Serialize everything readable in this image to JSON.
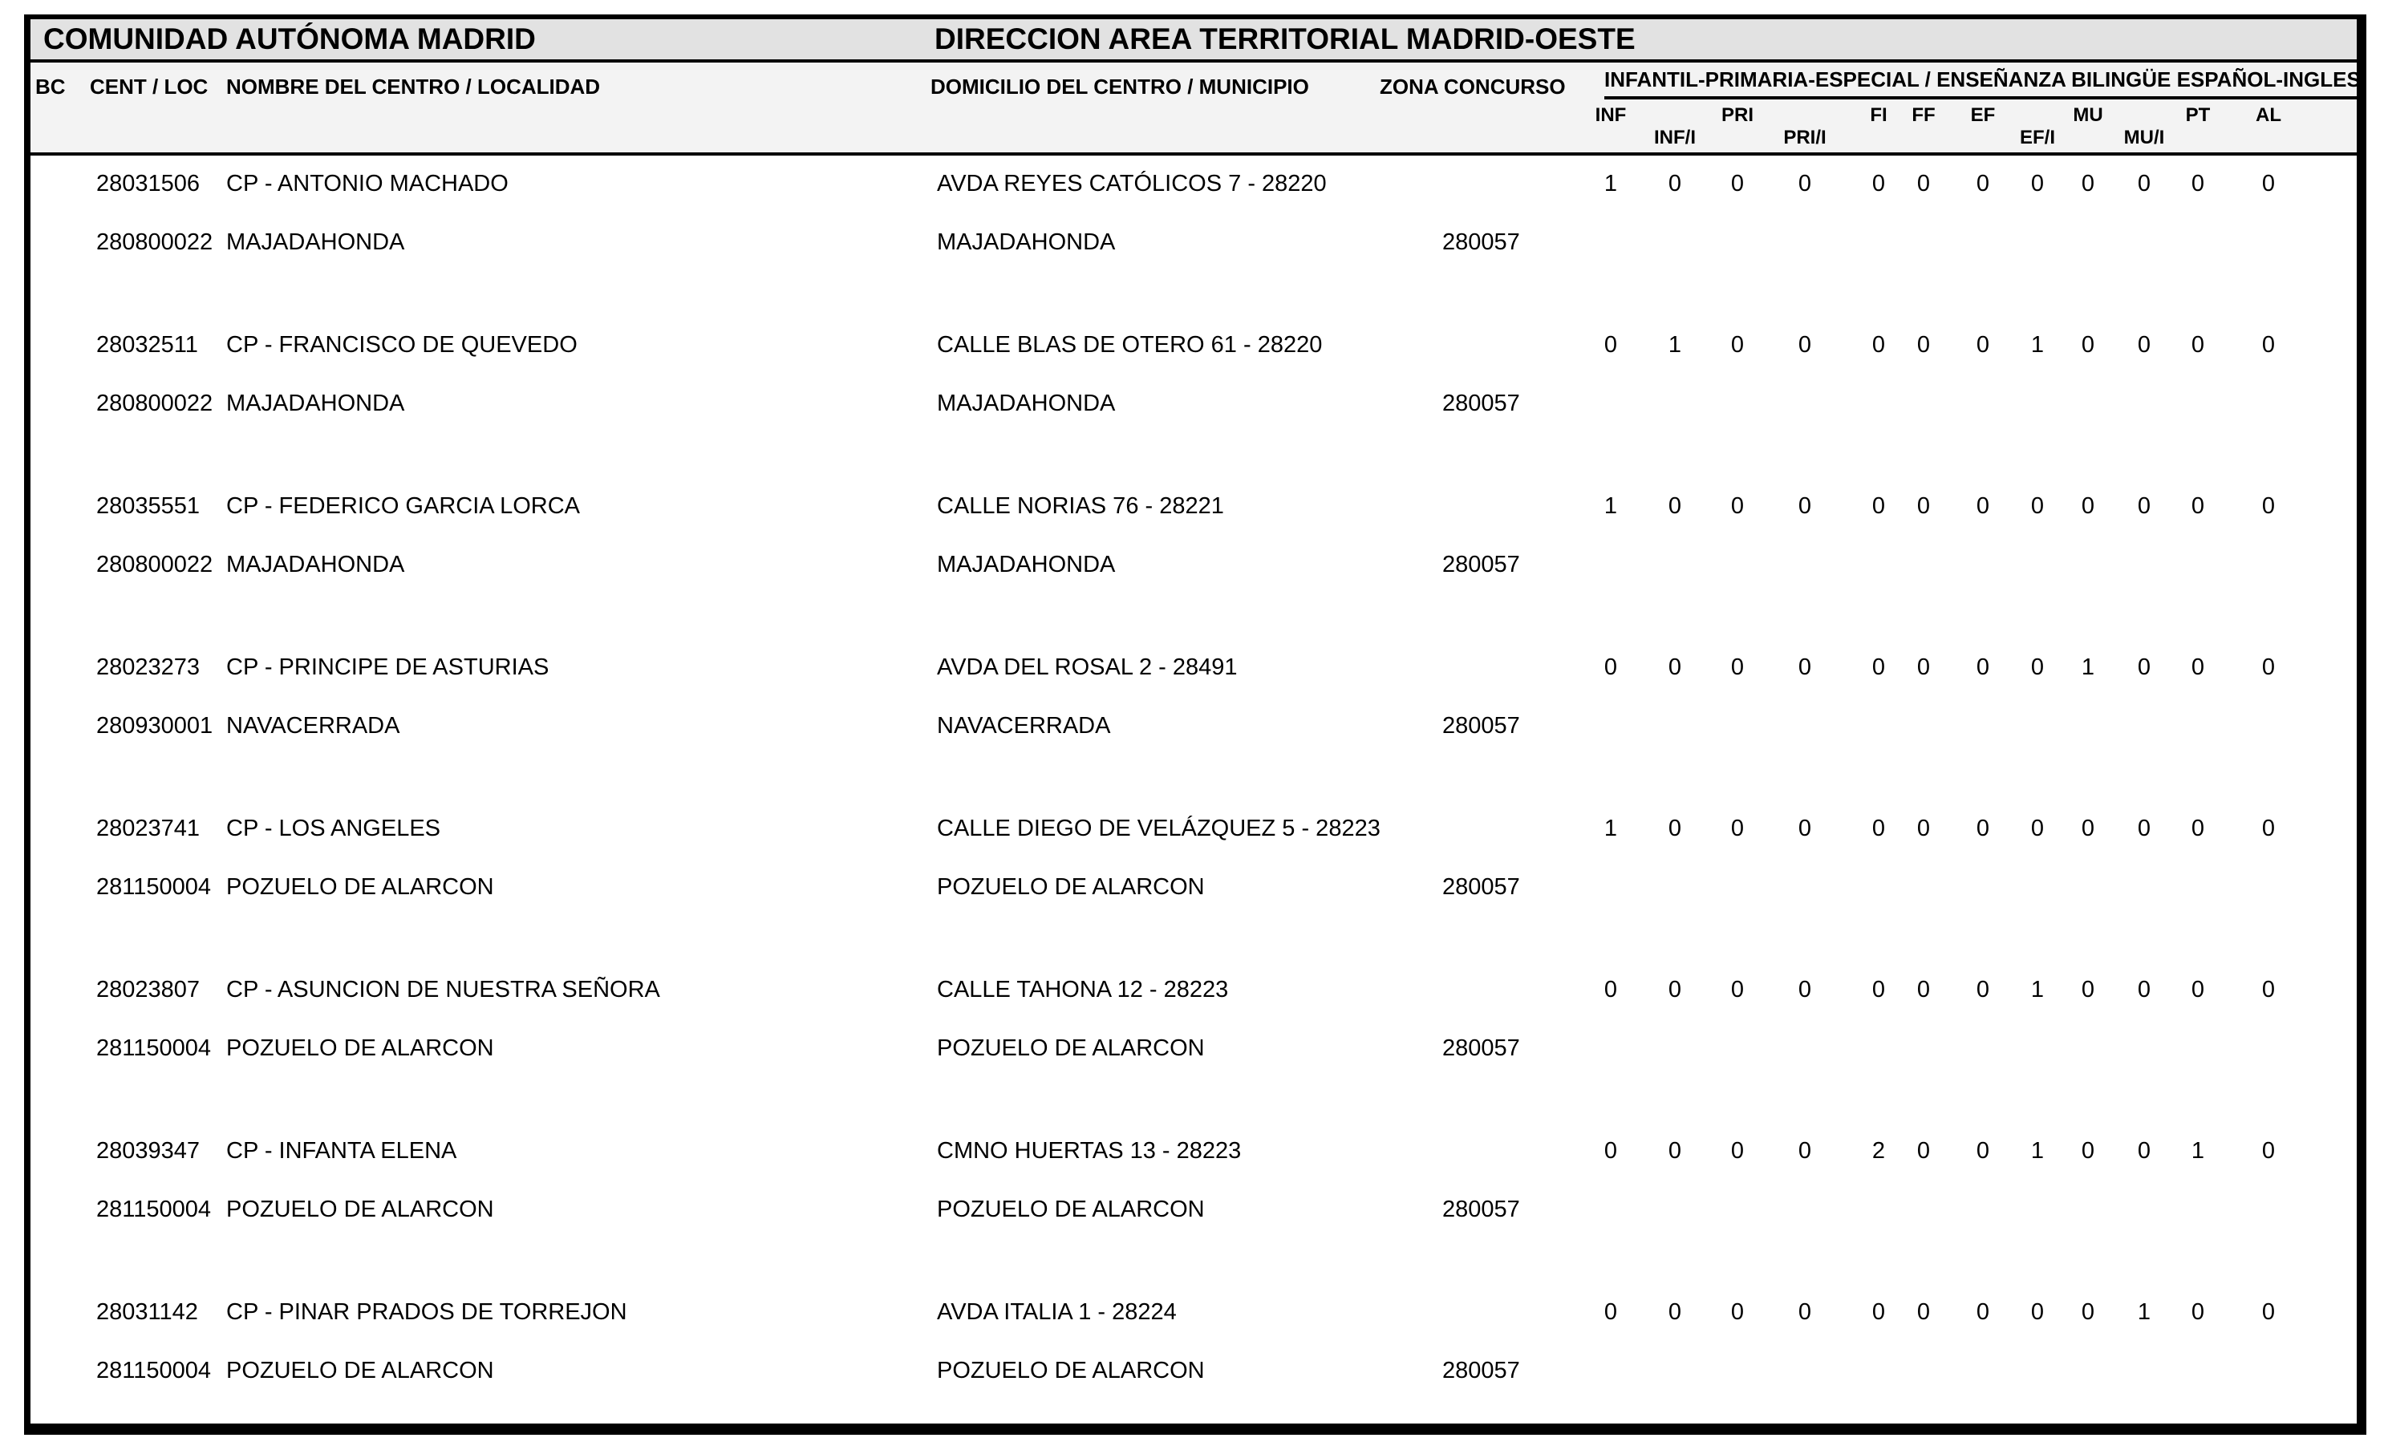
{
  "header": {
    "region_title": "COMUNIDAD AUTÓNOMA MADRID",
    "area_title": "DIRECCION AREA TERRITORIAL MADRID-OESTE"
  },
  "columns": {
    "bc": "BC",
    "cent_loc": "CENT / LOC",
    "nombre": "NOMBRE DEL CENTRO / LOCALIDAD",
    "domicilio": "DOMICILIO DEL CENTRO / MUNICIPIO",
    "zona": "ZONA CONCURSO",
    "group": "INFANTIL-PRIMARIA-ESPECIAL / ENSEÑANZA BILINGÜE ESPAÑOL-INGLES",
    "subcolumns": [
      "INF",
      "INF/I",
      "PRI",
      "PRI/I",
      "FI",
      "FF",
      "EF",
      "EF/I",
      "MU",
      "MU/I",
      "PT",
      "AL"
    ]
  },
  "rows": [
    {
      "cent": "28031506",
      "nombre": "CP - ANTONIO MACHADO",
      "domicilio": "AVDA REYES CATÓLICOS 7 - 28220",
      "loc": "280800022",
      "localidad": "MAJADAHONDA",
      "municipio": "MAJADAHONDA",
      "zona": "280057",
      "values": [
        1,
        0,
        0,
        0,
        0,
        0,
        0,
        0,
        0,
        0,
        0,
        0
      ]
    },
    {
      "cent": "28032511",
      "nombre": "CP - FRANCISCO DE QUEVEDO",
      "domicilio": "CALLE BLAS DE OTERO 61 - 28220",
      "loc": "280800022",
      "localidad": "MAJADAHONDA",
      "municipio": "MAJADAHONDA",
      "zona": "280057",
      "values": [
        0,
        1,
        0,
        0,
        0,
        0,
        0,
        1,
        0,
        0,
        0,
        0
      ]
    },
    {
      "cent": "28035551",
      "nombre": "CP - FEDERICO GARCIA LORCA",
      "domicilio": "CALLE NORIAS 76 - 28221",
      "loc": "280800022",
      "localidad": "MAJADAHONDA",
      "municipio": "MAJADAHONDA",
      "zona": "280057",
      "values": [
        1,
        0,
        0,
        0,
        0,
        0,
        0,
        0,
        0,
        0,
        0,
        0
      ]
    },
    {
      "cent": "28023273",
      "nombre": "CP - PRINCIPE DE ASTURIAS",
      "domicilio": "AVDA DEL ROSAL 2 - 28491",
      "loc": "280930001",
      "localidad": "NAVACERRADA",
      "municipio": "NAVACERRADA",
      "zona": "280057",
      "values": [
        0,
        0,
        0,
        0,
        0,
        0,
        0,
        0,
        1,
        0,
        0,
        0
      ]
    },
    {
      "cent": "28023741",
      "nombre": "CP - LOS ANGELES",
      "domicilio": "CALLE DIEGO DE VELÁZQUEZ 5 - 28223",
      "loc": "281150004",
      "localidad": "POZUELO DE ALARCON",
      "municipio": "POZUELO DE ALARCON",
      "zona": "280057",
      "values": [
        1,
        0,
        0,
        0,
        0,
        0,
        0,
        0,
        0,
        0,
        0,
        0
      ]
    },
    {
      "cent": "28023807",
      "nombre": "CP - ASUNCION DE NUESTRA SEÑORA",
      "domicilio": "CALLE TAHONA 12 - 28223",
      "loc": "281150004",
      "localidad": "POZUELO DE ALARCON",
      "municipio": "POZUELO DE ALARCON",
      "zona": "280057",
      "values": [
        0,
        0,
        0,
        0,
        0,
        0,
        0,
        1,
        0,
        0,
        0,
        0
      ]
    },
    {
      "cent": "28039347",
      "nombre": "CP - INFANTA ELENA",
      "domicilio": "CMNO HUERTAS 13 - 28223",
      "loc": "281150004",
      "localidad": "POZUELO DE ALARCON",
      "municipio": "POZUELO DE ALARCON",
      "zona": "280057",
      "values": [
        0,
        0,
        0,
        0,
        2,
        0,
        0,
        1,
        0,
        0,
        1,
        0
      ]
    },
    {
      "cent": "28031142",
      "nombre": "CP - PINAR PRADOS DE TORREJON",
      "domicilio": "AVDA ITALIA 1 - 28224",
      "loc": "281150004",
      "localidad": "POZUELO DE ALARCON",
      "municipio": "POZUELO DE ALARCON",
      "zona": "280057",
      "values": [
        0,
        0,
        0,
        0,
        0,
        0,
        0,
        0,
        0,
        1,
        0,
        0
      ]
    }
  ],
  "colors": {
    "title_band": "#e2e2e2",
    "header_band": "#f3f3f3",
    "border": "#000000",
    "background": "#ffffff",
    "text": "#000000"
  }
}
